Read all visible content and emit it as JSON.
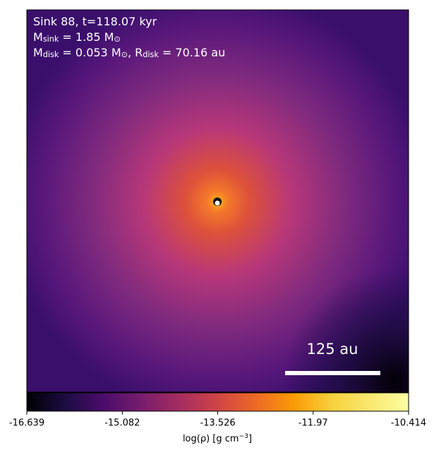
{
  "chart_data": {
    "type": "image",
    "annotations": [
      [
        {
          "text": "Sink 88, t=118.07 kyr"
        }
      ],
      [
        {
          "text": "M"
        },
        {
          "text": "sink",
          "sub": true
        },
        {
          "text": " = 1.85 M"
        },
        {
          "text": "⊙",
          "sub": true
        }
      ],
      [
        {
          "text": "M"
        },
        {
          "text": "disk",
          "sub": true
        },
        {
          "text": " = 0.053 M"
        },
        {
          "text": "⊙",
          "sub": true
        },
        {
          "text": ", R"
        },
        {
          "text": "disk",
          "sub": true
        },
        {
          "text": " = 70.16 au"
        }
      ]
    ],
    "scale_bar_label": "125 au",
    "colorbar": {
      "label": [
        {
          "text": "log(ρ) [g cm"
        },
        {
          "text": "−3",
          "sup": true
        },
        {
          "text": "]"
        }
      ],
      "lim": [
        -16.639,
        -10.414
      ],
      "ticks": [
        -16.639,
        -15.082,
        -13.526,
        -11.97,
        -10.414
      ]
    }
  }
}
